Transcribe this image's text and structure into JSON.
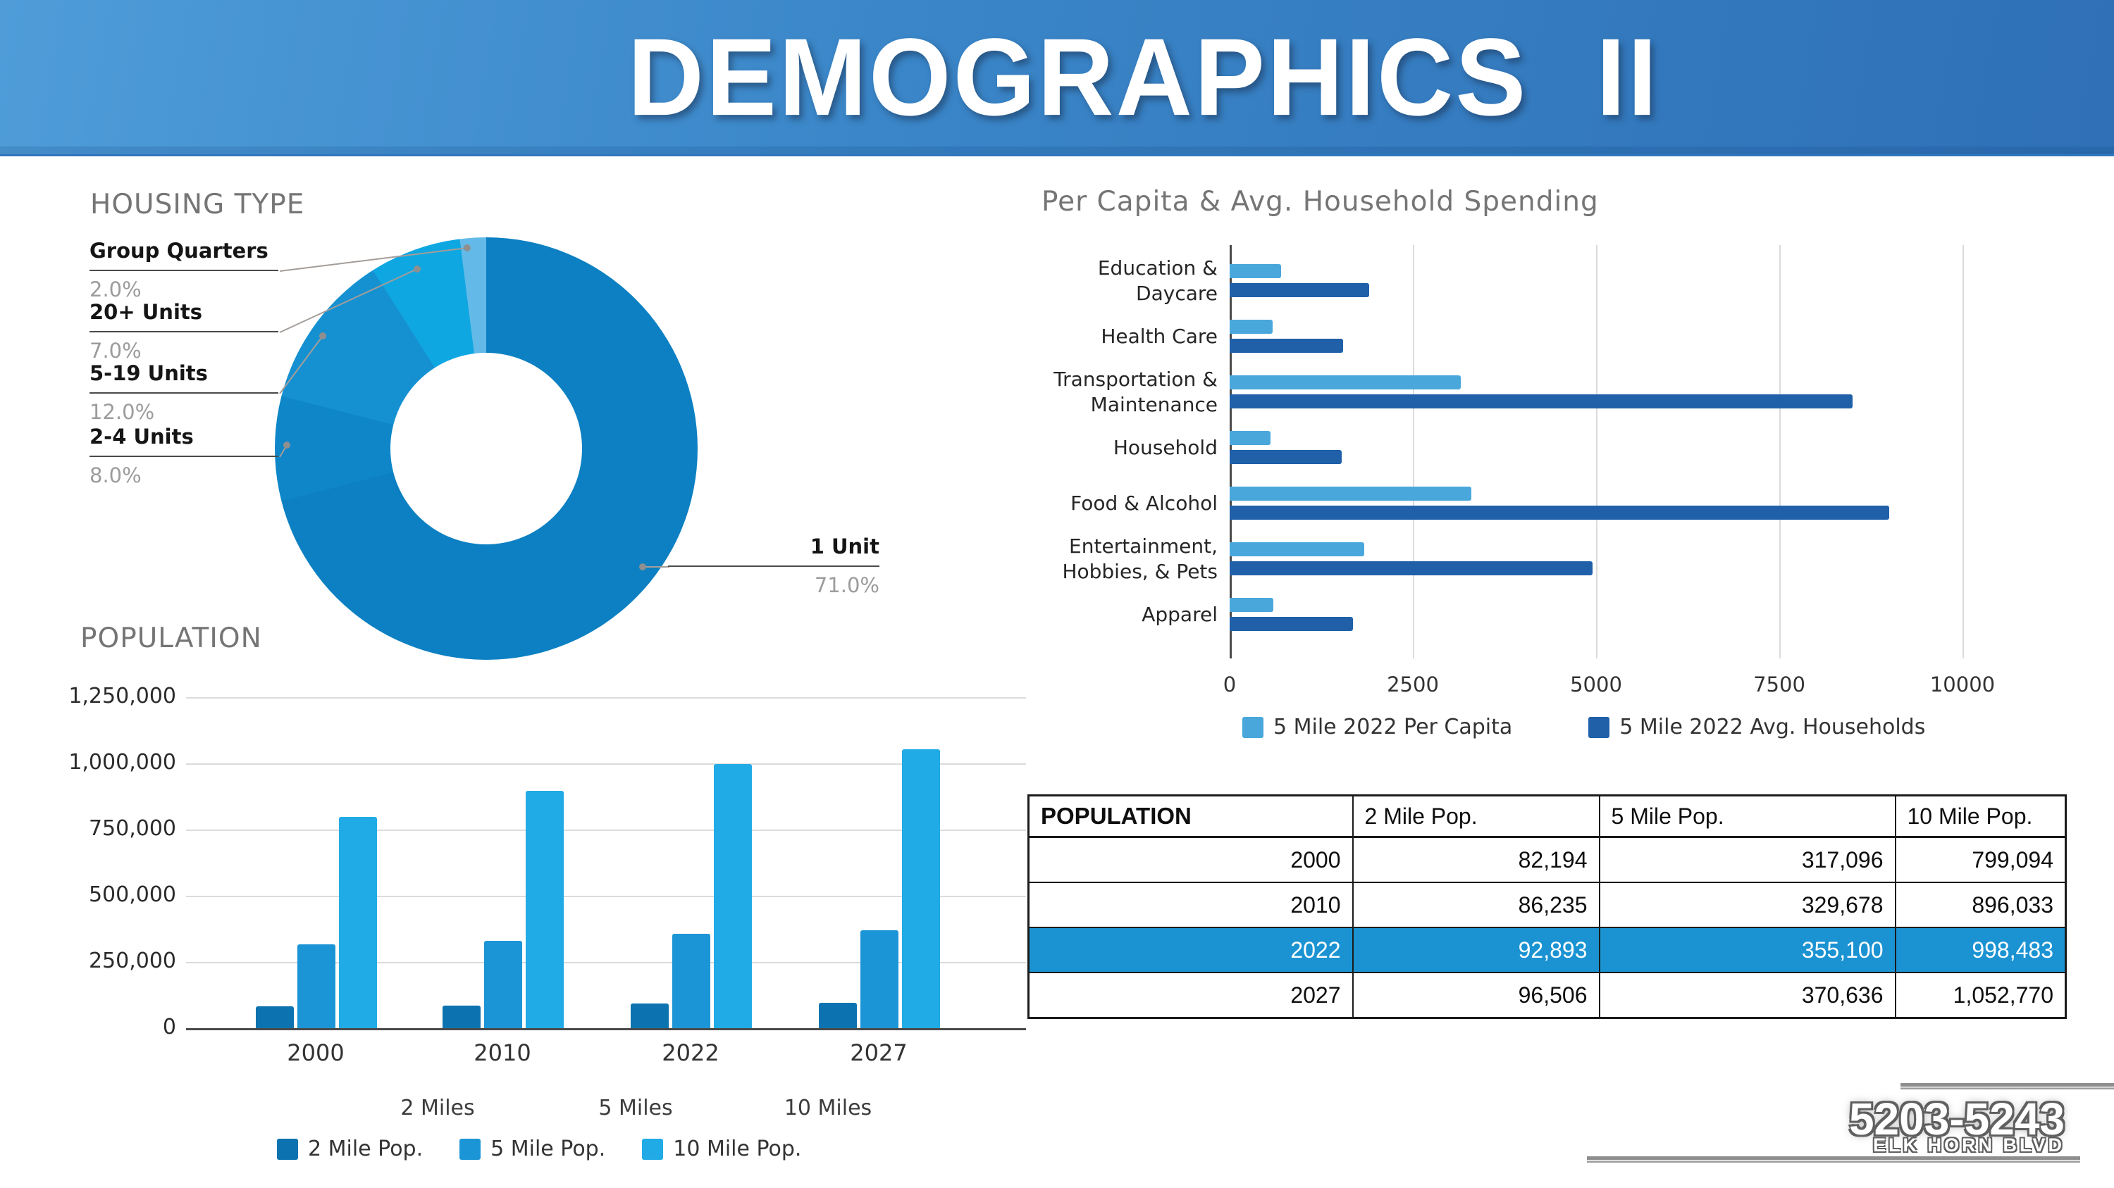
{
  "header": {
    "title": "DEMOGRAPHICS II"
  },
  "sections": {
    "housing_title": "HOUSING TYPE",
    "population_title": "POPULATION",
    "spending_title": "Per Capita & Avg. Household Spending"
  },
  "logo": {
    "address_range": "5203-5243",
    "street": "ELK HORN BLVD"
  },
  "population_table": {
    "headers": [
      "POPULATION",
      "2 Mile Pop.",
      "5 Mile Pop.",
      "10 Mile Pop."
    ],
    "rows": [
      [
        "2000",
        "82,194",
        "317,096",
        "799,094"
      ],
      [
        "2010",
        "86,235",
        "329,678",
        "896,033"
      ],
      [
        "2022",
        "92,893",
        "355,100",
        "998,483"
      ],
      [
        "2027",
        "96,506",
        "370,636",
        "1,052,770"
      ]
    ],
    "highlight_row_index": 2,
    "highlight_color": "#1b93d3"
  },
  "chart_data": [
    {
      "type": "pie",
      "subtype": "donut",
      "title": "HOUSING TYPE",
      "slices": [
        {
          "label": "1 Unit",
          "value": 71.0,
          "pct_label": "71.0%",
          "color": "#0c80c2"
        },
        {
          "label": "2-4 Units",
          "value": 8.0,
          "pct_label": "8.0%",
          "color": "#0e86c8"
        },
        {
          "label": "5-19 Units",
          "value": 12.0,
          "pct_label": "12.0%",
          "color": "#1591d2"
        },
        {
          "label": "20+ Units",
          "value": 7.0,
          "pct_label": "7.0%",
          "color": "#0fa7e1"
        },
        {
          "label": "Group Quarters",
          "value": 2.0,
          "pct_label": "2.0%",
          "color": "#63bae8"
        }
      ]
    },
    {
      "type": "bar",
      "orientation": "horizontal",
      "title": "Per Capita & Avg. Household Spending",
      "categories": [
        "Education &\nDaycare",
        "Health Care",
        "Transportation &\nMaintenance",
        "Household",
        "Food & Alcohol",
        "Entertainment,\nHobbies, & Pets",
        "Apparel"
      ],
      "series": [
        {
          "name": "5 Mile 2022 Per Capita",
          "color": "#4aa7dc",
          "values": [
            700,
            590,
            3150,
            560,
            3300,
            1840,
            600
          ]
        },
        {
          "name": "5 Mile 2022 Avg. Households",
          "color": "#1f60a9",
          "values": [
            1900,
            1550,
            8500,
            1530,
            9000,
            4950,
            1680
          ]
        }
      ],
      "x_ticks": [
        0,
        2500,
        5000,
        7500,
        10000
      ],
      "xlim": [
        0,
        10000
      ],
      "grid": true,
      "legend_position": "bottom"
    },
    {
      "type": "bar",
      "orientation": "vertical",
      "title": "POPULATION",
      "categories": [
        "2000",
        "2010",
        "2022",
        "2027"
      ],
      "series": [
        {
          "name": "2 Mile Pop.",
          "color": "#0d73b0",
          "values": [
            82194,
            86235,
            92893,
            96506
          ]
        },
        {
          "name": "5 Mile Pop.",
          "color": "#1b95d5",
          "values": [
            317096,
            329678,
            355100,
            370636
          ]
        },
        {
          "name": "10 Mile Pop.",
          "color": "#21abe6",
          "values": [
            799094,
            896033,
            998483,
            1052770
          ]
        }
      ],
      "y_ticks": [
        0,
        250000,
        500000,
        750000,
        1000000,
        1250000
      ],
      "y_tick_labels": [
        "0",
        "250,000",
        "500,000",
        "750,000",
        "1,000,000",
        "1,250,000"
      ],
      "ylim": [
        0,
        1250000
      ],
      "secondary_axis_labels": [
        "2 Miles",
        "5 Miles",
        "10 Miles"
      ],
      "grid": true,
      "legend_position": "bottom"
    }
  ]
}
